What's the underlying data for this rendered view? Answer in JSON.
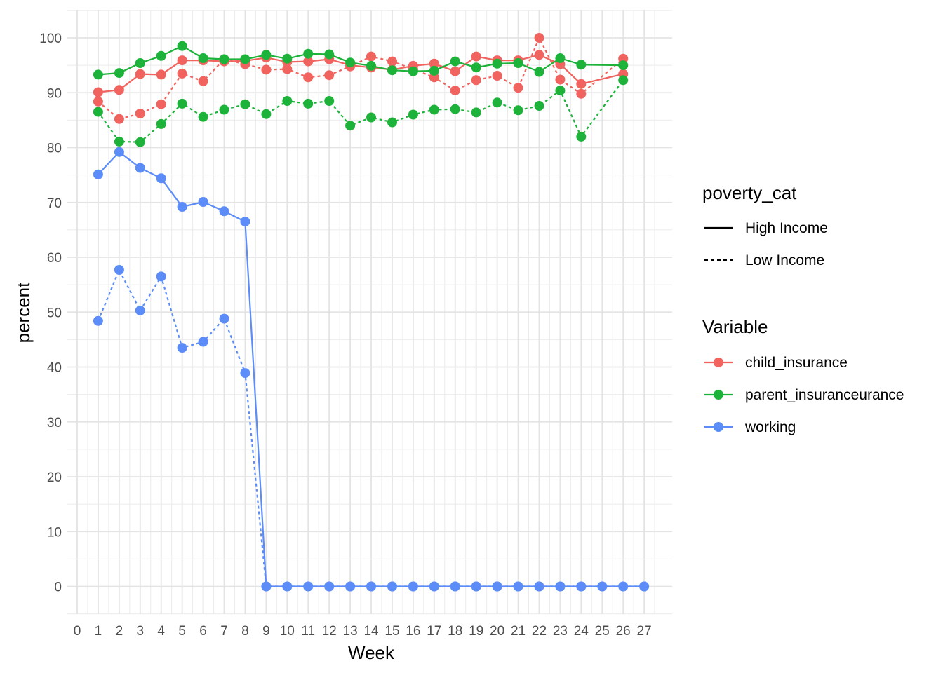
{
  "chart_data": {
    "type": "line",
    "xlabel": "Week",
    "ylabel": "percent",
    "xlim": [
      0,
      27
    ],
    "ylim": [
      -5,
      105
    ],
    "x_ticks": [
      0,
      1,
      2,
      3,
      4,
      5,
      6,
      7,
      8,
      9,
      10,
      11,
      12,
      13,
      14,
      15,
      16,
      17,
      18,
      19,
      20,
      21,
      22,
      23,
      24,
      25,
      26,
      27
    ],
    "y_ticks": [
      0,
      10,
      20,
      30,
      40,
      50,
      60,
      70,
      80,
      90,
      100
    ],
    "grid": true,
    "legend_placement": "right",
    "colors": {
      "child_insurance": "#F0635E",
      "parent_insuranceurance": "#1DB33A",
      "working": "#5B8CF7"
    },
    "legends": [
      {
        "title": "poverty_cat",
        "entries": [
          {
            "label": "High Income",
            "linetype": "solid"
          },
          {
            "label": "Low Income",
            "linetype": "dashed"
          }
        ]
      },
      {
        "title": "Variable",
        "entries": [
          {
            "label": "child_insurance",
            "color": "#F0635E"
          },
          {
            "label": "parent_insuranceurance",
            "color": "#1DB33A"
          },
          {
            "label": "working",
            "color": "#5B8CF7"
          }
        ]
      }
    ],
    "series": [
      {
        "variable": "child_insurance",
        "poverty_cat": "High Income",
        "x": [
          1,
          2,
          3,
          4,
          5,
          6,
          7,
          8,
          9,
          10,
          11,
          12,
          13,
          14,
          15,
          16,
          17,
          18,
          19,
          20,
          21,
          22,
          23,
          24,
          26
        ],
        "y": [
          90.1,
          90.5,
          93.4,
          93.3,
          95.9,
          95.9,
          95.7,
          95.8,
          96.4,
          95.6,
          95.7,
          96.1,
          95.0,
          94.6,
          94.2,
          94.9,
          95.3,
          93.9,
          96.6,
          95.9,
          95.9,
          96.9,
          95.2,
          91.6,
          93.4
        ]
      },
      {
        "variable": "child_insurance",
        "poverty_cat": "Low Income",
        "x": [
          1,
          2,
          3,
          4,
          5,
          6,
          7,
          8,
          9,
          10,
          11,
          12,
          13,
          14,
          15,
          16,
          17,
          18,
          19,
          20,
          21,
          22,
          23,
          24,
          26
        ],
        "y": [
          88.4,
          85.2,
          86.2,
          87.9,
          93.5,
          92.1,
          96.1,
          95.2,
          94.2,
          94.3,
          92.8,
          93.2,
          94.8,
          96.6,
          95.7,
          94.3,
          92.8,
          90.4,
          92.3,
          93.1,
          90.9,
          100.0,
          92.4,
          89.8,
          96.2
        ]
      },
      {
        "variable": "parent_insuranceurance",
        "poverty_cat": "High Income",
        "x": [
          1,
          2,
          3,
          4,
          5,
          6,
          7,
          8,
          9,
          10,
          11,
          12,
          13,
          14,
          15,
          16,
          17,
          18,
          19,
          20,
          21,
          22,
          23,
          24,
          26
        ],
        "y": [
          93.3,
          93.6,
          95.4,
          96.7,
          98.5,
          96.3,
          96.1,
          96.1,
          96.9,
          96.2,
          97.1,
          97.0,
          95.5,
          94.9,
          94.1,
          93.9,
          94.0,
          95.7,
          94.6,
          95.3,
          95.4,
          93.8,
          96.3,
          95.1,
          95.0
        ]
      },
      {
        "variable": "parent_insuranceurance",
        "poverty_cat": "Low Income",
        "x": [
          1,
          2,
          3,
          4,
          5,
          6,
          7,
          8,
          9,
          10,
          11,
          12,
          13,
          14,
          15,
          16,
          17,
          18,
          19,
          20,
          21,
          22,
          23,
          24,
          26
        ],
        "y": [
          86.5,
          81.1,
          81.0,
          84.3,
          88.0,
          85.6,
          86.9,
          87.9,
          86.1,
          88.5,
          88.0,
          88.5,
          84.0,
          85.5,
          84.6,
          86.0,
          86.9,
          87.0,
          86.4,
          88.2,
          86.8,
          87.6,
          90.4,
          82.0,
          92.3
        ]
      },
      {
        "variable": "working",
        "poverty_cat": "High Income",
        "x": [
          1,
          2,
          3,
          4,
          5,
          6,
          7,
          8,
          9,
          10,
          11,
          12,
          13,
          14,
          15,
          16,
          17,
          18,
          19,
          20,
          21,
          22,
          23,
          24,
          25,
          26,
          27
        ],
        "y": [
          75.1,
          79.2,
          76.3,
          74.4,
          69.2,
          70.1,
          68.4,
          66.5,
          0,
          0,
          0,
          0,
          0,
          0,
          0,
          0,
          0,
          0,
          0,
          0,
          0,
          0,
          0,
          0,
          0,
          0,
          0
        ]
      },
      {
        "variable": "working",
        "poverty_cat": "Low Income",
        "x": [
          1,
          2,
          3,
          4,
          5,
          6,
          7,
          8,
          9,
          10,
          11,
          12,
          13,
          14,
          15,
          16,
          17,
          18,
          19,
          20,
          21,
          22,
          23,
          24,
          25,
          26,
          27
        ],
        "y": [
          48.4,
          57.7,
          50.3,
          56.5,
          43.5,
          44.6,
          48.8,
          38.9,
          0,
          0,
          0,
          0,
          0,
          0,
          0,
          0,
          0,
          0,
          0,
          0,
          0,
          0,
          0,
          0,
          0,
          0,
          0
        ]
      }
    ]
  }
}
